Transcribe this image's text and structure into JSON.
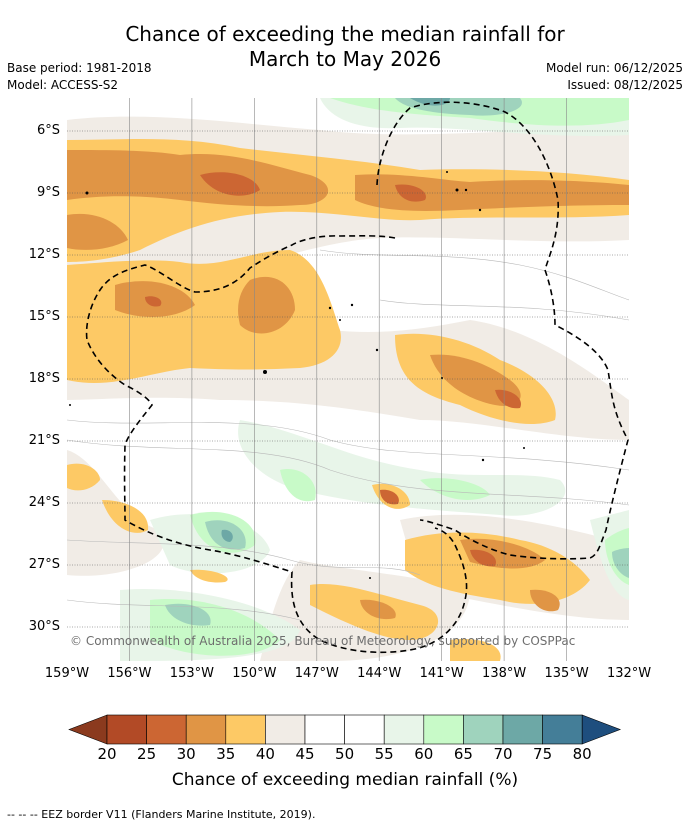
{
  "title_line1": "Chance of exceeding the median rainfall for",
  "title_line2": "March to May 2026",
  "base_period": "Base period: 1981-2018",
  "model": "Model: ACCESS-S2",
  "model_run": "Model run: 06/12/2025",
  "issued": "Issued: 08/12/2025",
  "copyright": "© Commonwealth of Australia 2025, Bureau of Meteorology, supported by COSPPac",
  "lat_labels": [
    "6°S",
    "9°S",
    "12°S",
    "15°S",
    "18°S",
    "21°S",
    "24°S",
    "27°S",
    "30°S"
  ],
  "lon_labels": [
    "159°W",
    "156°W",
    "153°W",
    "150°W",
    "147°W",
    "144°W",
    "141°W",
    "138°W",
    "135°W",
    "132°W"
  ],
  "colorbar": {
    "ticks": [
      "20",
      "25",
      "30",
      "35",
      "40",
      "45",
      "50",
      "55",
      "60",
      "65",
      "70",
      "75",
      "80"
    ],
    "colors": [
      "#8b3a1e",
      "#b24a26",
      "#cc6633",
      "#e09545",
      "#fdc965",
      "#f1ece6",
      "#ffffff",
      "#ffffff",
      "#e8f5e9",
      "#c8fac8",
      "#9fd3bd",
      "#6da8a6",
      "#447e98",
      "#1e4e7e"
    ],
    "label": "Chance of exceeding median rainfall (%)"
  },
  "footer": "--  --  -- EEZ border V11 (Flanders Marine Institute, 2019)."
}
